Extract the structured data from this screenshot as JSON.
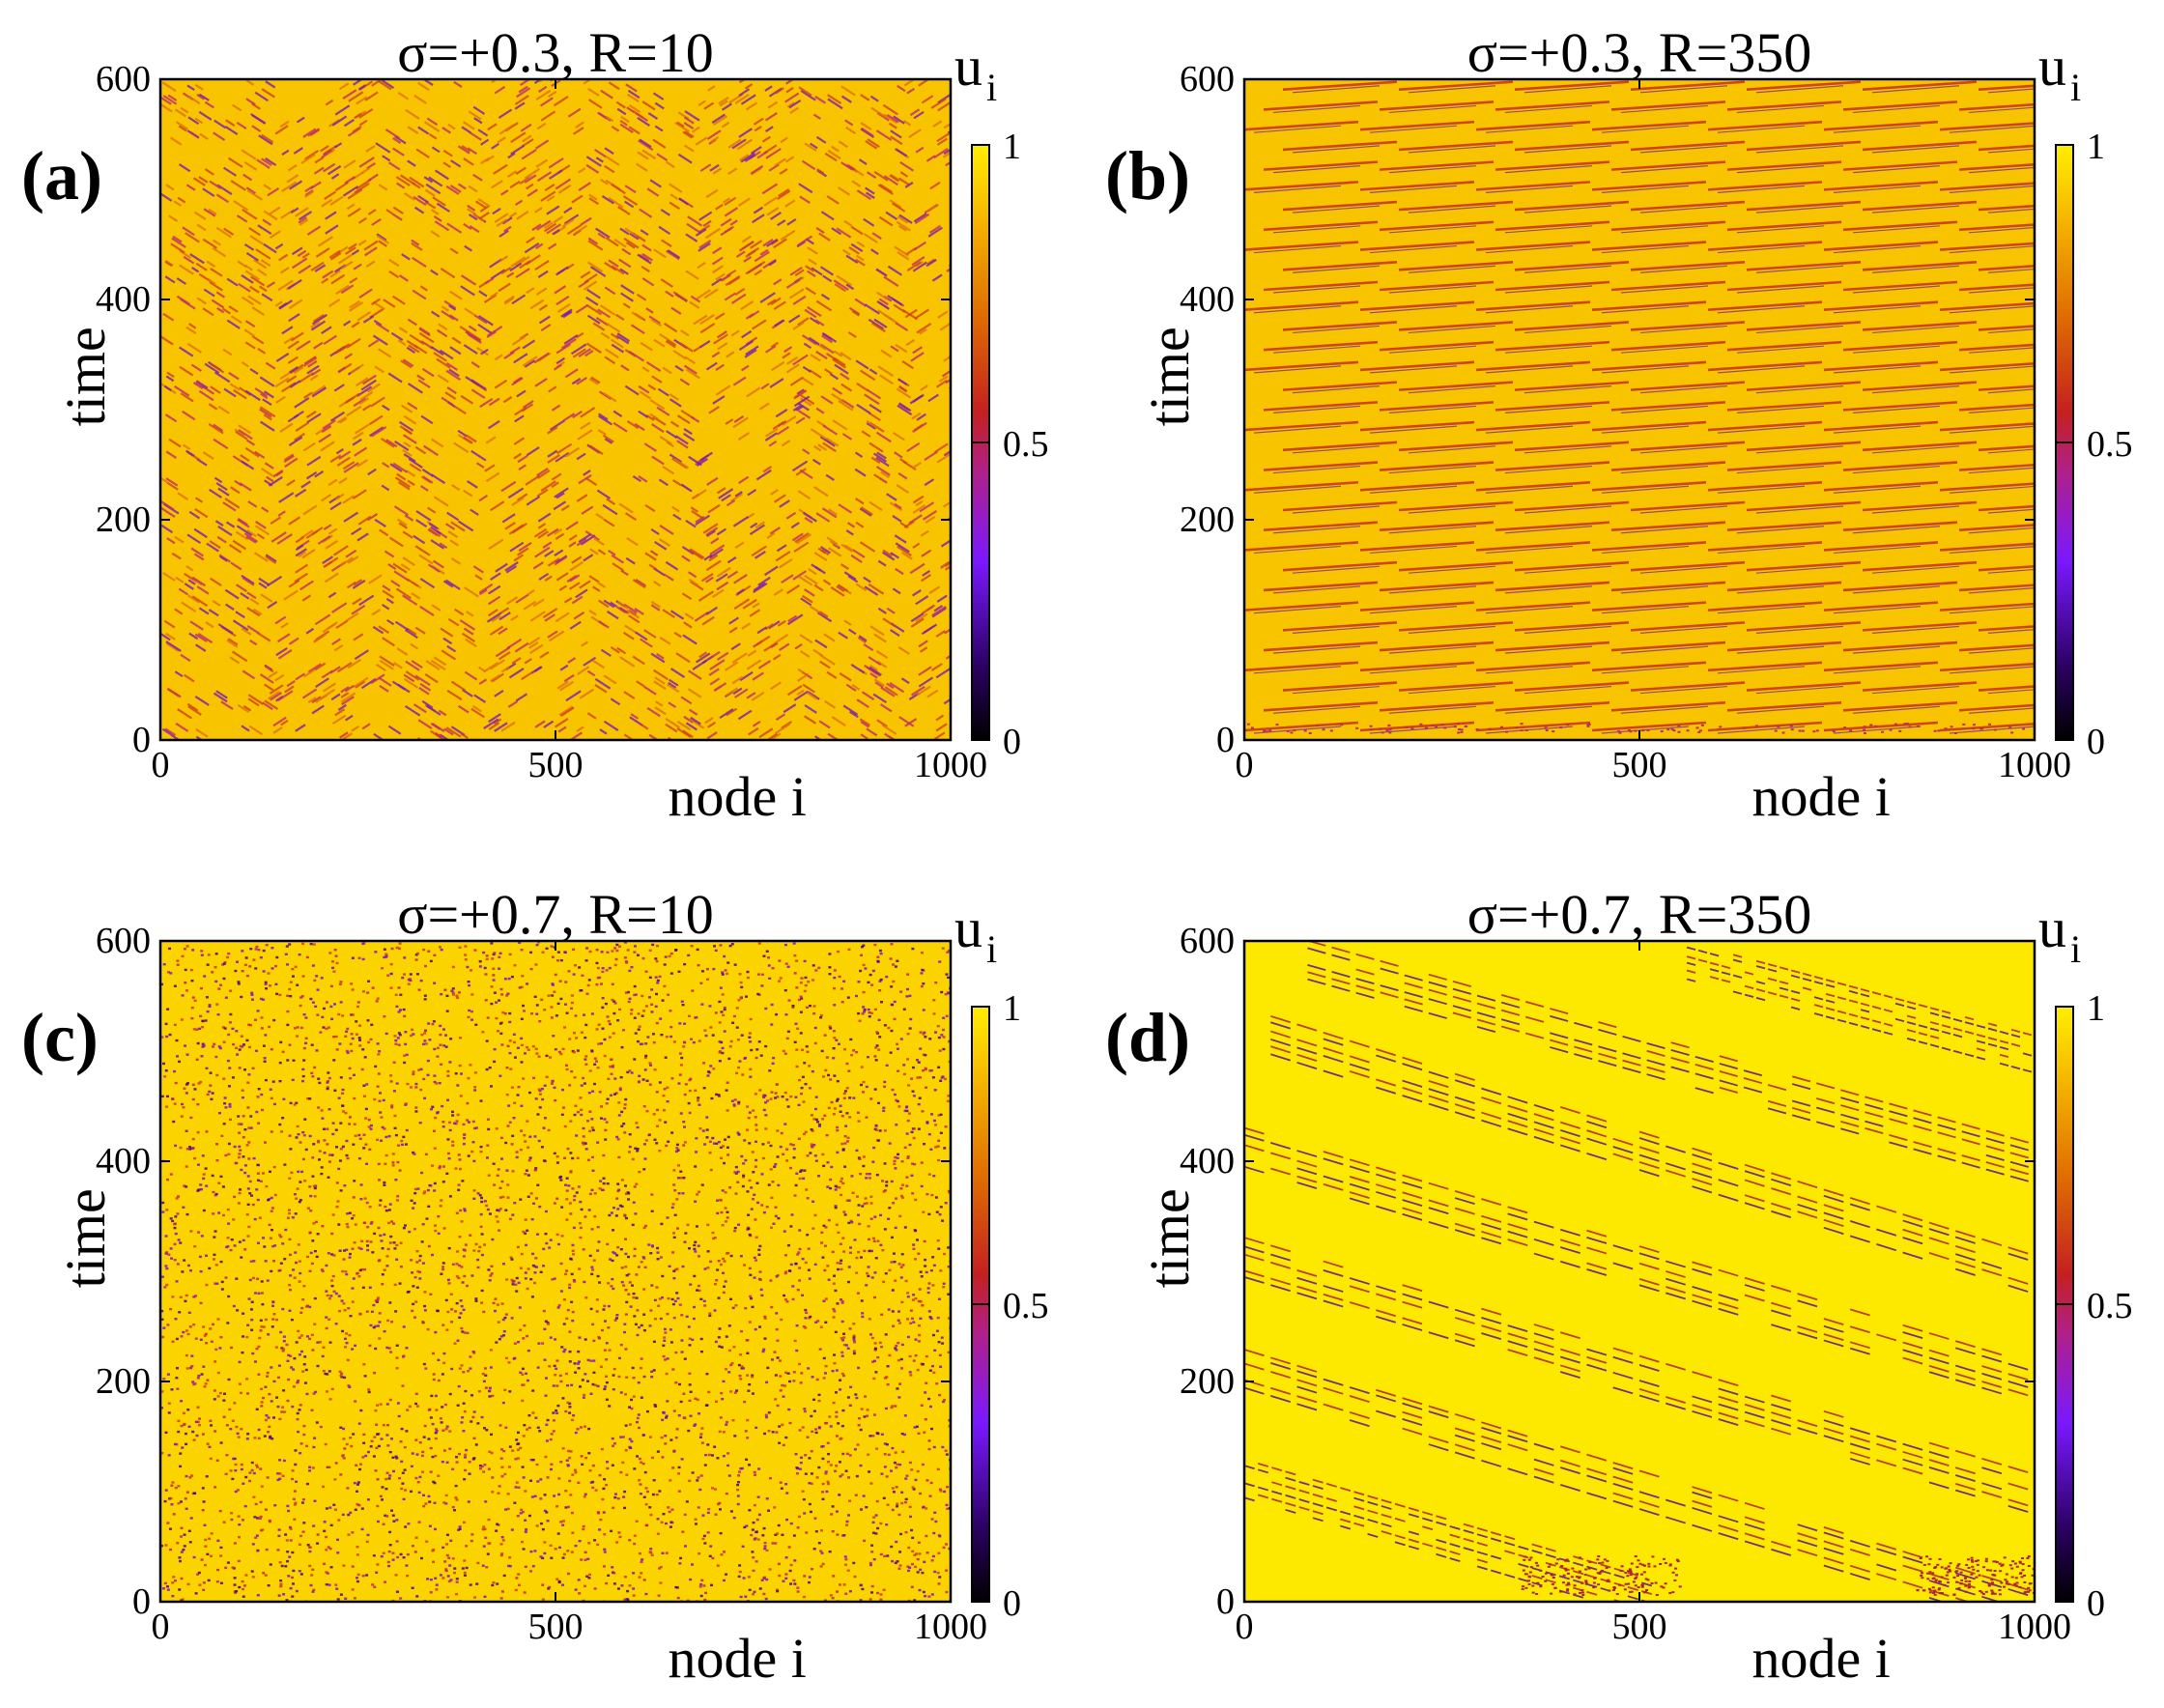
{
  "chart_data": [
    {
      "type": "heatmap",
      "panel_label": "(a)",
      "title": "σ=+0.3, R=10",
      "xlabel": "node i",
      "ylabel": "time",
      "xlim": [
        0,
        1000
      ],
      "ylim": [
        0,
        600
      ],
      "x_ticks": [
        "0",
        "500",
        "1000"
      ],
      "y_ticks": [
        "0",
        "200",
        "400",
        "600"
      ],
      "pattern": "zigzag chevron diagonal stripes",
      "colorbar": {
        "label_main": "u",
        "label_sub": "i",
        "range": [
          0,
          1
        ],
        "ticks": [
          "0",
          "0.5",
          "1"
        ]
      }
    },
    {
      "type": "heatmap",
      "panel_label": "(b)",
      "title": "σ=+0.3, R=350",
      "xlabel": "node i",
      "ylabel": "time",
      "xlim": [
        0,
        1000
      ],
      "ylim": [
        0,
        600
      ],
      "x_ticks": [
        "0",
        "500",
        "1000"
      ],
      "y_ticks": [
        "0",
        "200",
        "400",
        "600"
      ],
      "pattern": "regular nearly-horizontal traveling stripes",
      "colorbar": {
        "label_main": "u",
        "label_sub": "i",
        "range": [
          0,
          1
        ],
        "ticks": [
          "0",
          "0.5",
          "1"
        ]
      }
    },
    {
      "type": "heatmap",
      "panel_label": "(c)",
      "title": "σ=+0.7, R=10",
      "xlabel": "node i",
      "ylabel": "time",
      "xlim": [
        0,
        1000
      ],
      "ylim": [
        0,
        600
      ],
      "x_ticks": [
        "0",
        "500",
        "1000"
      ],
      "y_ticks": [
        "0",
        "200",
        "400",
        "600"
      ],
      "pattern": "fine incoherent speckle",
      "colorbar": {
        "label_main": "u",
        "label_sub": "i",
        "range": [
          0,
          1
        ],
        "ticks": [
          "0",
          "0.5",
          "1"
        ]
      }
    },
    {
      "type": "heatmap",
      "panel_label": "(d)",
      "title": "σ=+0.7, R=350",
      "xlabel": "node i",
      "ylabel": "time",
      "xlim": [
        0,
        1000
      ],
      "ylim": [
        0,
        600
      ],
      "x_ticks": [
        "0",
        "500",
        "1000"
      ],
      "y_ticks": [
        "0",
        "200",
        "400",
        "600"
      ],
      "pattern": "traveling bands of dark oscillations",
      "bands": [
        {
          "node_start": 0,
          "time_start": 130,
          "node_end": 520,
          "time_end": 20
        },
        {
          "node_start": 0,
          "time_start": 230,
          "node_end": 1000,
          "time_end": 10
        },
        {
          "node_start": 0,
          "time_start": 330,
          "node_end": 1000,
          "time_end": 115
        },
        {
          "node_start": 0,
          "time_start": 430,
          "node_end": 1000,
          "time_end": 215
        },
        {
          "node_start": 0,
          "time_start": 540,
          "node_end": 1000,
          "time_end": 315
        },
        {
          "node_start": 80,
          "time_start": 600,
          "node_end": 1000,
          "time_end": 415
        },
        {
          "node_start": 560,
          "time_start": 600,
          "node_end": 1000,
          "time_end": 515
        }
      ],
      "colorbar": {
        "label_main": "u",
        "label_sub": "i",
        "range": [
          0,
          1
        ],
        "ticks": [
          "0",
          "0.5",
          "1"
        ]
      }
    }
  ],
  "colormap": {
    "name": "gnuplot-like",
    "stops": [
      "#000000",
      "#1a0040",
      "#6a10ff",
      "#c01fa0",
      "#c82020",
      "#e06a00",
      "#f4b000",
      "#ffee00"
    ]
  }
}
